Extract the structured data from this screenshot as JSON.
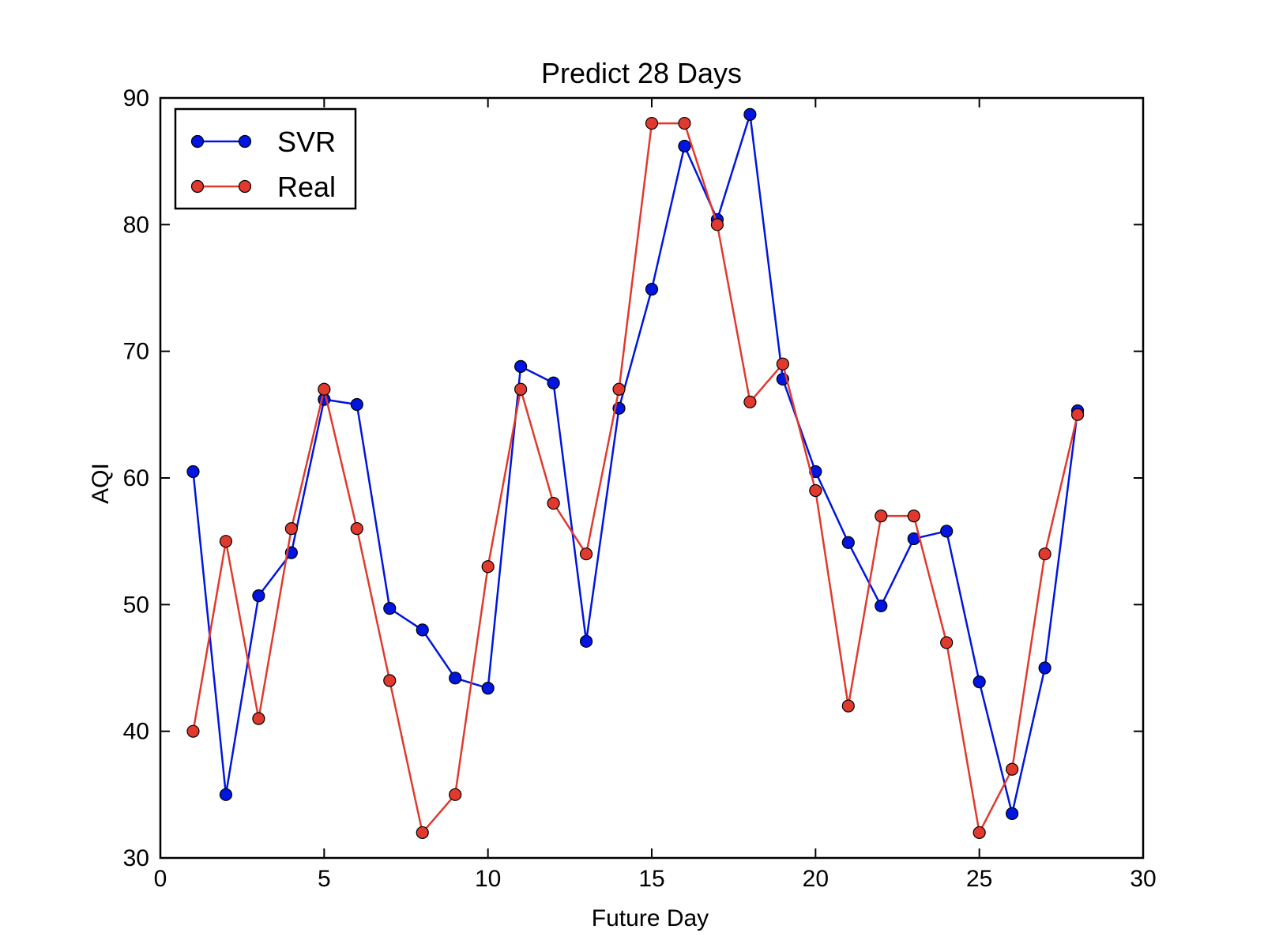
{
  "chart_data": {
    "type": "line",
    "title": "Predict 28 Days",
    "xlabel": "Future Day",
    "ylabel": "AQI",
    "xlim": [
      0,
      30
    ],
    "ylim": [
      30,
      90
    ],
    "x_ticks": [
      "0",
      "5",
      "10",
      "15",
      "20",
      "25",
      "30"
    ],
    "y_ticks": [
      "30",
      "40",
      "50",
      "60",
      "70",
      "80",
      "90"
    ],
    "grid": false,
    "legend_position": "top-left",
    "x": [
      1,
      2,
      3,
      4,
      5,
      6,
      7,
      8,
      9,
      10,
      11,
      12,
      13,
      14,
      15,
      16,
      17,
      18,
      19,
      20,
      21,
      22,
      23,
      24,
      25,
      26,
      27,
      28
    ],
    "series": [
      {
        "name": "SVR",
        "color": "#0015e0",
        "values": [
          60.5,
          35,
          50.7,
          54.1,
          66.2,
          65.8,
          49.7,
          48,
          44.2,
          43.4,
          68.8,
          67.5,
          47.1,
          65.5,
          74.9,
          86.2,
          80.4,
          88.7,
          67.8,
          60.5,
          54.9,
          49.9,
          55.2,
          55.8,
          43.9,
          33.5,
          45,
          65.3
        ]
      },
      {
        "name": "Real",
        "color": "#e03a2e",
        "values": [
          40,
          55,
          41,
          56,
          67,
          56,
          44,
          32,
          35,
          53,
          67,
          58,
          54,
          67,
          88,
          88,
          80,
          66,
          69,
          59,
          42,
          57,
          57,
          47,
          32,
          37,
          54,
          65
        ]
      }
    ]
  }
}
